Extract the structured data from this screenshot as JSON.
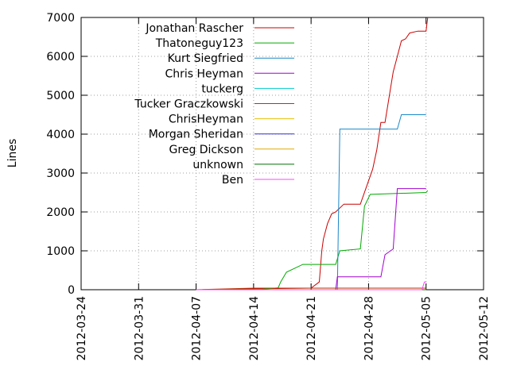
{
  "chart_data": {
    "type": "line",
    "title": "",
    "xlabel": "",
    "ylabel": "Lines",
    "xlim": [
      "2012-03-24",
      "2012-05-12"
    ],
    "ylim": [
      0,
      7000
    ],
    "x_tick_labels": [
      "2012-03-24",
      "2012-03-31",
      "2012-04-07",
      "2012-04-14",
      "2012-04-21",
      "2012-04-28",
      "2012-05-05",
      "2012-05-12"
    ],
    "y_tick_labels": [
      "0",
      "1000",
      "2000",
      "3000",
      "4000",
      "5000",
      "6000",
      "7000"
    ],
    "grid": true,
    "legend_position": "top-left",
    "series": [
      {
        "name": "Jonathan Rascher",
        "color": "#cc0000",
        "points": [
          [
            "2012-04-07",
            0
          ],
          [
            "2012-04-13",
            20
          ],
          [
            "2012-04-21",
            40
          ],
          [
            "2012-04-22",
            200
          ],
          [
            "2012-04-22.3",
            1000
          ],
          [
            "2012-04-22.5",
            1300
          ],
          [
            "2012-04-23",
            1700
          ],
          [
            "2012-04-23.5",
            1950
          ],
          [
            "2012-04-24",
            2000
          ],
          [
            "2012-04-25",
            2200
          ],
          [
            "2012-04-27",
            2200
          ],
          [
            "2012-04-28",
            2800
          ],
          [
            "2012-04-28.5",
            3100
          ],
          [
            "2012-04-29",
            3600
          ],
          [
            "2012-04-29.5",
            4300
          ],
          [
            "2012-04-30",
            4300
          ],
          [
            "2012-05-01",
            5600
          ],
          [
            "2012-05-01.5",
            6000
          ],
          [
            "2012-05-02",
            6400
          ],
          [
            "2012-05-02.5",
            6450
          ],
          [
            "2012-05-03",
            6600
          ],
          [
            "2012-05-04",
            6650
          ],
          [
            "2012-05-05",
            6650
          ],
          [
            "2012-05-05.2",
            7000
          ]
        ]
      },
      {
        "name": "Thatoneguy123",
        "color": "#00aa00",
        "points": [
          [
            "2012-04-07",
            0
          ],
          [
            "2012-04-15",
            10
          ],
          [
            "2012-04-17",
            50
          ],
          [
            "2012-04-17.3",
            200
          ],
          [
            "2012-04-18",
            450
          ],
          [
            "2012-04-20",
            650
          ],
          [
            "2012-04-24",
            650
          ],
          [
            "2012-04-24.5",
            1000
          ],
          [
            "2012-04-27",
            1050
          ],
          [
            "2012-04-27.5",
            2150
          ],
          [
            "2012-04-28.2",
            2450
          ],
          [
            "2012-05-05",
            2500
          ],
          [
            "2012-05-05.2",
            2550
          ]
        ]
      },
      {
        "name": "Kurt Siegfried",
        "color": "#1a87c8",
        "points": [
          [
            "2012-04-07",
            0
          ],
          [
            "2012-04-24.2",
            0
          ],
          [
            "2012-04-24.5",
            4130
          ],
          [
            "2012-05-01.5",
            4130
          ],
          [
            "2012-05-02",
            4500
          ],
          [
            "2012-05-05",
            4500
          ]
        ]
      },
      {
        "name": "Chris Heyman",
        "color": "#a000d0",
        "points": [
          [
            "2012-04-07",
            0
          ],
          [
            "2012-04-24",
            0
          ],
          [
            "2012-04-24.2",
            330
          ],
          [
            "2012-04-29.5",
            330
          ],
          [
            "2012-04-30",
            900
          ],
          [
            "2012-05-01",
            1050
          ],
          [
            "2012-05-01.5",
            2600
          ],
          [
            "2012-05-05",
            2600
          ]
        ]
      },
      {
        "name": "tuckerg",
        "color": "#00cccc",
        "points": [
          [
            "2012-04-07",
            0
          ],
          [
            "2012-05-05",
            0
          ]
        ]
      },
      {
        "name": "Tucker Graczkowski",
        "color": "#bb3300",
        "points": [
          [
            "2012-04-07",
            0
          ],
          [
            "2012-04-14",
            40
          ],
          [
            "2012-04-21",
            40
          ],
          [
            "2012-05-05",
            40
          ]
        ]
      },
      {
        "name": "ChrisHeyman",
        "color": "#e8c000",
        "points": [
          [
            "2012-04-07",
            0
          ],
          [
            "2012-05-05",
            0
          ]
        ]
      },
      {
        "name": "Morgan Sheridan",
        "color": "#3030d0",
        "points": [
          [
            "2012-04-07",
            0
          ],
          [
            "2012-05-05",
            0
          ]
        ]
      },
      {
        "name": "Greg Dickson",
        "color": "#e0a800",
        "points": [
          [
            "2012-04-07",
            0
          ],
          [
            "2012-05-05",
            0
          ]
        ]
      },
      {
        "name": "unknown",
        "color": "#007000",
        "points": [
          [
            "2012-04-07",
            0
          ],
          [
            "2012-05-05",
            0
          ]
        ]
      },
      {
        "name": "Ben",
        "color": "#ff44ff",
        "points": [
          [
            "2012-04-07",
            0
          ],
          [
            "2012-05-04.5",
            0
          ],
          [
            "2012-05-04.8",
            200
          ],
          [
            "2012-05-05",
            200
          ]
        ]
      }
    ]
  }
}
